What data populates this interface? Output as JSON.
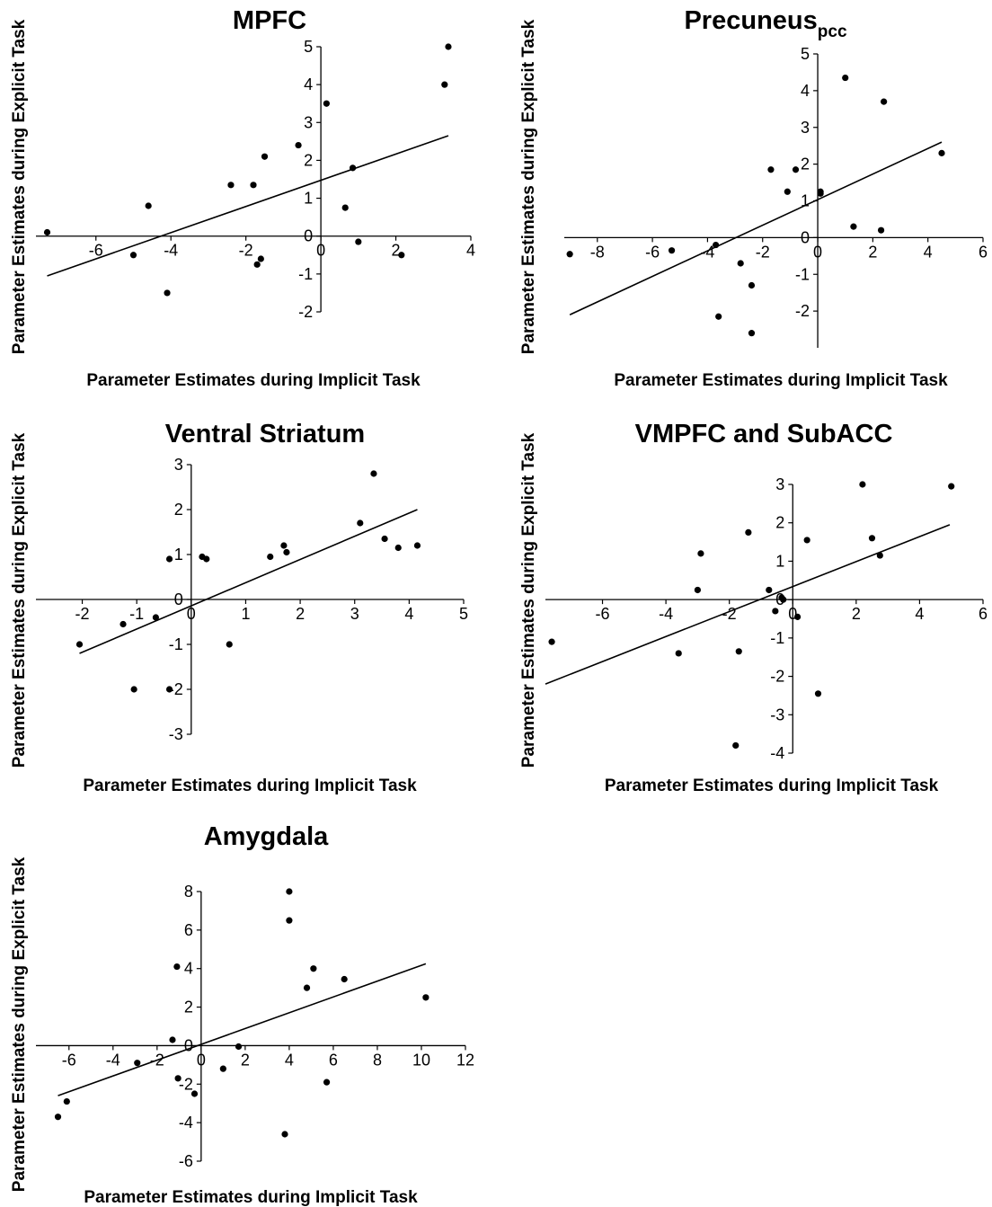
{
  "figure_labels": {
    "xlabel": "Parameter Estimates during Implicit Task",
    "ylabel": "Parameter Estimates during Explicit Task"
  },
  "chart_data": [
    {
      "type": "scatter",
      "title": "MPFC",
      "title_sub": "",
      "xlabel": "Parameter Estimates during Implicit Task",
      "ylabel": "Parameter Estimates during Explicit Task",
      "xlim": [
        -7.6,
        4
      ],
      "ylim": [
        -2,
        5
      ],
      "xticks": [
        -6,
        -4,
        -2,
        0,
        2,
        4
      ],
      "yticks": [
        -2,
        -1,
        0,
        1,
        2,
        3,
        4,
        5
      ],
      "points": [
        {
          "x": -7.3,
          "y": 0.1
        },
        {
          "x": -5.0,
          "y": -0.5
        },
        {
          "x": -4.6,
          "y": 0.8
        },
        {
          "x": -4.1,
          "y": -1.5
        },
        {
          "x": -2.4,
          "y": 1.35
        },
        {
          "x": -1.8,
          "y": 1.35
        },
        {
          "x": -1.7,
          "y": -0.75
        },
        {
          "x": -1.6,
          "y": -0.6
        },
        {
          "x": -1.5,
          "y": 2.1
        },
        {
          "x": -0.6,
          "y": 2.4
        },
        {
          "x": 0.15,
          "y": 3.5
        },
        {
          "x": 0.65,
          "y": 0.75
        },
        {
          "x": 0.85,
          "y": 1.8
        },
        {
          "x": 1.0,
          "y": -0.15
        },
        {
          "x": 2.15,
          "y": -0.5
        },
        {
          "x": 3.3,
          "y": 4.0
        },
        {
          "x": 3.4,
          "y": 5.0
        }
      ],
      "fit_line": {
        "x": [
          -7.3,
          3.4
        ],
        "y": [
          -1.05,
          2.65
        ]
      }
    },
    {
      "type": "scatter",
      "title": "Precuneus",
      "title_sub": "pcc",
      "xlabel": "Parameter Estimates during Implicit Task",
      "ylabel": "Parameter Estimates during Explicit Task",
      "xlim": [
        -9.2,
        6
      ],
      "ylim": [
        -3,
        5
      ],
      "xticks": [
        -8,
        -6,
        -4,
        -2,
        0,
        2,
        4,
        6
      ],
      "yticks": [
        -2,
        -1,
        0,
        1,
        2,
        3,
        4,
        5
      ],
      "points": [
        {
          "x": -9.0,
          "y": -0.45
        },
        {
          "x": -5.3,
          "y": -0.35
        },
        {
          "x": -3.7,
          "y": -0.2
        },
        {
          "x": -3.6,
          "y": -2.15
        },
        {
          "x": -2.8,
          "y": -0.7
        },
        {
          "x": -2.4,
          "y": -1.3
        },
        {
          "x": -2.4,
          "y": -2.6
        },
        {
          "x": -1.7,
          "y": 1.85
        },
        {
          "x": -1.1,
          "y": 1.25
        },
        {
          "x": -0.8,
          "y": 1.85
        },
        {
          "x": 0.1,
          "y": 1.25
        },
        {
          "x": 0.1,
          "y": 1.2
        },
        {
          "x": 1.0,
          "y": 4.35
        },
        {
          "x": 1.3,
          "y": 0.3
        },
        {
          "x": 2.3,
          "y": 0.2
        },
        {
          "x": 2.4,
          "y": 3.7
        },
        {
          "x": 4.5,
          "y": 2.3
        }
      ],
      "fit_line": {
        "x": [
          -9.0,
          4.5
        ],
        "y": [
          -2.1,
          2.6
        ]
      }
    },
    {
      "type": "scatter",
      "title": "Ventral Striatum",
      "title_sub": "",
      "xlabel": "Parameter Estimates during Implicit Task",
      "ylabel": "Parameter Estimates during Explicit Task",
      "xlim": [
        -2.85,
        5
      ],
      "ylim": [
        -3,
        3
      ],
      "xticks": [
        -2,
        -1,
        0,
        1,
        2,
        3,
        4,
        5
      ],
      "yticks": [
        -3,
        -2,
        -1,
        0,
        1,
        2,
        3
      ],
      "points": [
        {
          "x": -2.05,
          "y": -1.0
        },
        {
          "x": -1.25,
          "y": -0.55
        },
        {
          "x": -1.05,
          "y": -2.0
        },
        {
          "x": -0.65,
          "y": -0.4
        },
        {
          "x": -0.4,
          "y": 0.9
        },
        {
          "x": -0.4,
          "y": -2.0
        },
        {
          "x": 0.2,
          "y": 0.95
        },
        {
          "x": 0.28,
          "y": 0.9
        },
        {
          "x": 0.7,
          "y": -1.0
        },
        {
          "x": 1.45,
          "y": 0.95
        },
        {
          "x": 1.7,
          "y": 1.2
        },
        {
          "x": 1.75,
          "y": 1.05
        },
        {
          "x": 3.1,
          "y": 1.7
        },
        {
          "x": 3.35,
          "y": 2.8
        },
        {
          "x": 3.55,
          "y": 1.35
        },
        {
          "x": 3.8,
          "y": 1.15
        },
        {
          "x": 4.15,
          "y": 1.2
        }
      ],
      "fit_line": {
        "x": [
          -2.05,
          4.15
        ],
        "y": [
          -1.2,
          2.0
        ]
      }
    },
    {
      "type": "scatter",
      "title": "VMPFC and SubACC",
      "title_sub": "",
      "xlabel": "Parameter Estimates during Implicit Task",
      "ylabel": "Parameter Estimates during Explicit Task",
      "xlim": [
        -7.8,
        6
      ],
      "ylim": [
        -4,
        3
      ],
      "xticks": [
        -6,
        -4,
        -2,
        0,
        2,
        4,
        6
      ],
      "yticks": [
        -4,
        -3,
        -2,
        -1,
        0,
        1,
        2,
        3
      ],
      "points": [
        {
          "x": -7.6,
          "y": -1.1
        },
        {
          "x": -3.6,
          "y": -1.4
        },
        {
          "x": -3.0,
          "y": 0.25
        },
        {
          "x": -2.9,
          "y": 1.2
        },
        {
          "x": -1.8,
          "y": -3.8
        },
        {
          "x": -1.7,
          "y": -1.35
        },
        {
          "x": -1.4,
          "y": 1.75
        },
        {
          "x": -0.75,
          "y": 0.25
        },
        {
          "x": -0.55,
          "y": -0.3
        },
        {
          "x": -0.35,
          "y": 0.05
        },
        {
          "x": -0.3,
          "y": 0.0
        },
        {
          "x": 0.15,
          "y": -0.45
        },
        {
          "x": 0.45,
          "y": 1.55
        },
        {
          "x": 0.8,
          "y": -2.45
        },
        {
          "x": 2.2,
          "y": 3.0
        },
        {
          "x": 2.5,
          "y": 1.6
        },
        {
          "x": 2.75,
          "y": 1.15
        },
        {
          "x": 5.0,
          "y": 2.95
        }
      ],
      "fit_line": {
        "x": [
          -7.8,
          4.95
        ],
        "y": [
          -2.2,
          1.95
        ]
      }
    },
    {
      "type": "scatter",
      "title": "Amygdala",
      "title_sub": "",
      "xlabel": "Parameter Estimates during Implicit Task",
      "ylabel": "Parameter Estimates during Explicit Task",
      "xlim": [
        -7.5,
        12
      ],
      "ylim": [
        -6,
        8
      ],
      "xticks": [
        -6,
        -4,
        -2,
        0,
        2,
        4,
        6,
        8,
        10,
        12
      ],
      "yticks": [
        -6,
        -4,
        -2,
        0,
        2,
        4,
        6,
        8
      ],
      "points": [
        {
          "x": -6.5,
          "y": -3.7
        },
        {
          "x": -6.1,
          "y": -2.9
        },
        {
          "x": -2.9,
          "y": -0.9
        },
        {
          "x": -1.3,
          "y": 0.3
        },
        {
          "x": -1.1,
          "y": 4.1
        },
        {
          "x": -1.05,
          "y": -1.7
        },
        {
          "x": -0.3,
          "y": -2.5
        },
        {
          "x": 1.0,
          "y": -1.2
        },
        {
          "x": 1.7,
          "y": -0.05
        },
        {
          "x": 3.8,
          "y": -4.6
        },
        {
          "x": 4.0,
          "y": 8.0
        },
        {
          "x": 4.0,
          "y": 6.5
        },
        {
          "x": 4.8,
          "y": 3.0
        },
        {
          "x": 5.1,
          "y": 4.0
        },
        {
          "x": 5.7,
          "y": -1.9
        },
        {
          "x": 6.5,
          "y": 3.45
        },
        {
          "x": 10.2,
          "y": 2.5
        }
      ],
      "fit_line": {
        "x": [
          -6.5,
          10.2
        ],
        "y": [
          -2.6,
          4.25
        ]
      }
    }
  ]
}
